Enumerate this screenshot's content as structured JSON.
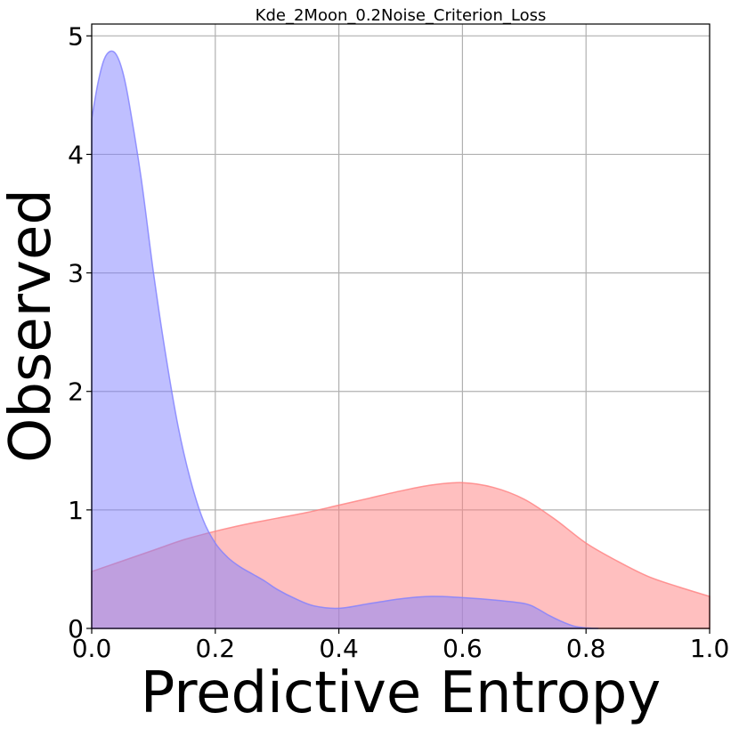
{
  "chart_data": {
    "type": "area",
    "title": "Kde_2Moon_0.2Noise_Criterion_Loss",
    "xlabel": "Predictive Entropy",
    "ylabel": "Observed",
    "xlim": [
      0.0,
      1.0
    ],
    "ylim": [
      0,
      5.1
    ],
    "grid": true,
    "x_ticks": [
      "0.0",
      "0.2",
      "0.4",
      "0.6",
      "0.8",
      "1.0"
    ],
    "y_ticks": [
      "0",
      "1",
      "2",
      "3",
      "4",
      "5"
    ],
    "series": [
      {
        "color": "#ff7f7f",
        "x": [
          0.0,
          0.05,
          0.1,
          0.15,
          0.2,
          0.25,
          0.3,
          0.35,
          0.4,
          0.45,
          0.5,
          0.55,
          0.6,
          0.65,
          0.7,
          0.75,
          0.8,
          0.85,
          0.9,
          0.95,
          1.0
        ],
        "y": [
          0.48,
          0.57,
          0.66,
          0.75,
          0.82,
          0.88,
          0.93,
          0.98,
          1.04,
          1.1,
          1.16,
          1.21,
          1.23,
          1.19,
          1.09,
          0.92,
          0.72,
          0.57,
          0.44,
          0.35,
          0.27
        ]
      },
      {
        "color": "#7f7fff",
        "x": [
          0.0,
          0.01,
          0.02,
          0.03,
          0.04,
          0.05,
          0.06,
          0.08,
          0.1,
          0.12,
          0.14,
          0.16,
          0.18,
          0.2,
          0.22,
          0.24,
          0.26,
          0.28,
          0.3,
          0.33,
          0.36,
          0.4,
          0.45,
          0.5,
          0.55,
          0.6,
          0.65,
          0.7,
          0.72,
          0.74,
          0.76,
          0.78,
          0.8,
          0.82
        ],
        "y": [
          4.3,
          4.6,
          4.8,
          4.87,
          4.84,
          4.7,
          4.45,
          3.8,
          3.0,
          2.3,
          1.7,
          1.25,
          0.92,
          0.72,
          0.6,
          0.52,
          0.46,
          0.4,
          0.33,
          0.25,
          0.19,
          0.17,
          0.21,
          0.25,
          0.27,
          0.26,
          0.24,
          0.21,
          0.17,
          0.11,
          0.06,
          0.02,
          0.005,
          0.0
        ]
      }
    ]
  }
}
